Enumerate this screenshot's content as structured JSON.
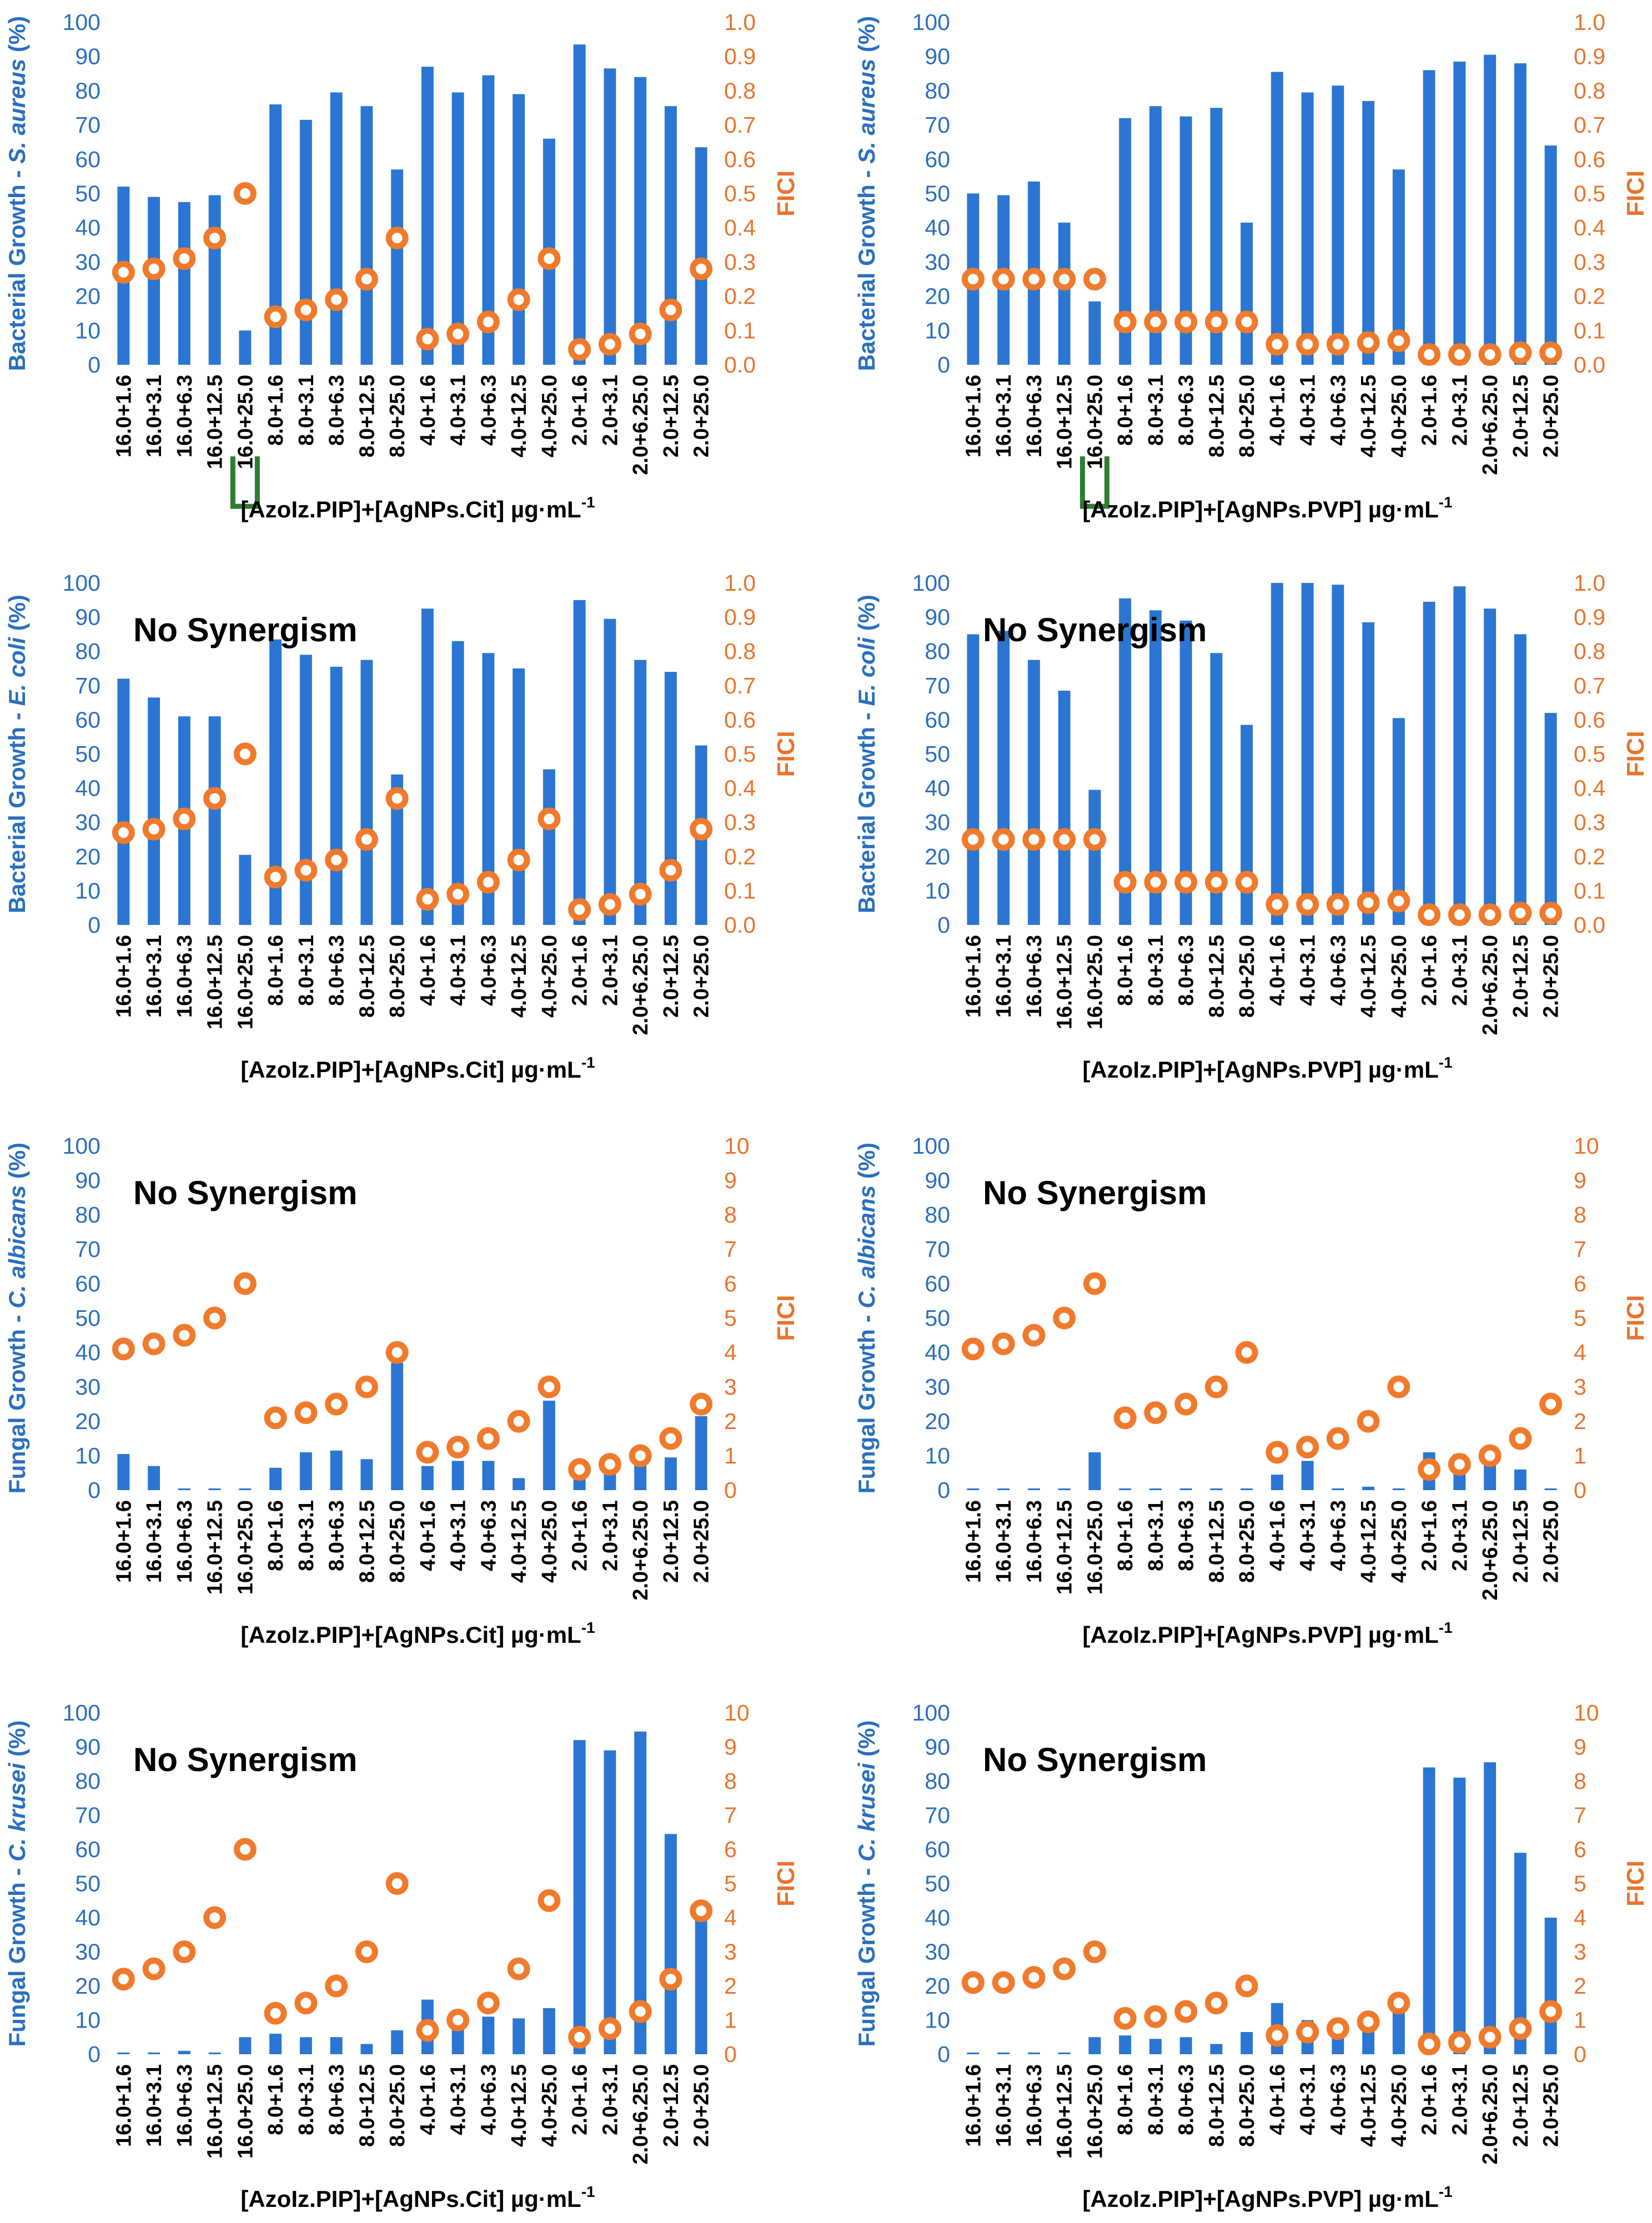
{
  "colors": {
    "bar": "#2a76d2",
    "fici": "#f07a2c",
    "left_axis": "#2a6fbd",
    "right_axis": "#e8742b",
    "marker": "#2e7d2e"
  },
  "chart_data": [
    {
      "id": "sa-cit",
      "type": "bar+scatter",
      "ylabel_prefix": "Bacterial Growth - ",
      "ylabel_species": "S. aureus",
      "ylabel_suffix": " (%)",
      "y2label": "FICI",
      "xlabel_main": "[AzoIz.PIP]+[AgNPs.Cit] µg·mL",
      "xlabel_sup": "-1",
      "ylim": [
        0,
        100
      ],
      "y2lim": [
        0,
        1.0
      ],
      "yticks": [
        "0",
        "10",
        "20",
        "30",
        "40",
        "50",
        "60",
        "70",
        "80",
        "90",
        "100"
      ],
      "y2ticks": [
        "0.0",
        "0.1",
        "0.2",
        "0.3",
        "0.4",
        "0.5",
        "0.6",
        "0.7",
        "0.8",
        "0.9",
        "1.0"
      ],
      "categories": [
        "16.0+1.6",
        "16.0+3.1",
        "16.0+6.3",
        "16.0+12.5",
        "16.0+25.0",
        "8.0+1.6",
        "8.0+3.1",
        "8.0+6.3",
        "8.0+12.5",
        "8.0+25.0",
        "4.0+1.6",
        "4.0+3.1",
        "4.0+6.3",
        "4.0+12.5",
        "4.0+25.0",
        "2.0+1.6",
        "2.0+3.1",
        "2.0+6.25.0",
        "2.0+12.5",
        "2.0+25.0"
      ],
      "growth": [
        52,
        49,
        47.5,
        49.5,
        10,
        76,
        71.5,
        79.5,
        75.5,
        57,
        87,
        79.5,
        84.5,
        79,
        66,
        93.5,
        86.5,
        84,
        75.5,
        63.5
      ],
      "fici": [
        0.27,
        0.28,
        0.31,
        0.37,
        0.5,
        0.14,
        0.16,
        0.19,
        0.25,
        0.37,
        0.075,
        0.09,
        0.125,
        0.19,
        0.31,
        0.045,
        0.06,
        0.09,
        0.16,
        0.28
      ],
      "highlight": {
        "index": 4,
        "label": "16"
      },
      "annotation": ""
    },
    {
      "id": "sa-pvp",
      "type": "bar+scatter",
      "ylabel_prefix": "Bacterial Growth - ",
      "ylabel_species": "S. aureus",
      "ylabel_suffix": " (%)",
      "y2label": "FICI",
      "xlabel_main": "[AzoIz.PIP]+[AgNPs.PVP] µg·mL",
      "xlabel_sup": "-1",
      "ylim": [
        0,
        100
      ],
      "y2lim": [
        0,
        1.0
      ],
      "yticks": [
        "0",
        "10",
        "20",
        "30",
        "40",
        "50",
        "60",
        "70",
        "80",
        "90",
        "100"
      ],
      "y2ticks": [
        "0.0",
        "0.1",
        "0.2",
        "0.3",
        "0.4",
        "0.5",
        "0.6",
        "0.7",
        "0.8",
        "0.9",
        "1.0"
      ],
      "categories": [
        "16.0+1.6",
        "16.0+3.1",
        "16.0+6.3",
        "16.0+12.5",
        "16.0+25.0",
        "8.0+1.6",
        "8.0+3.1",
        "8.0+6.3",
        "8.0+12.5",
        "8.0+25.0",
        "4.0+1.6",
        "4.0+3.1",
        "4.0+6.3",
        "4.0+12.5",
        "4.0+25.0",
        "2.0+1.6",
        "2.0+3.1",
        "2.0+6.25.0",
        "2.0+12.5",
        "2.0+25.0"
      ],
      "growth": [
        50,
        49.5,
        53.5,
        41.5,
        18.5,
        72,
        75.5,
        72.5,
        75,
        41.5,
        85.5,
        79.5,
        81.5,
        77,
        57,
        86,
        88.5,
        90.5,
        88,
        64
      ],
      "fici": [
        0.25,
        0.25,
        0.25,
        0.25,
        0.25,
        0.125,
        0.125,
        0.125,
        0.125,
        0.125,
        0.06,
        0.06,
        0.06,
        0.065,
        0.07,
        0.03,
        0.03,
        0.03,
        0.035,
        0.035
      ],
      "highlight": {
        "index": 4,
        "label": "16"
      },
      "annotation": ""
    },
    {
      "id": "ec-cit",
      "type": "bar+scatter",
      "ylabel_prefix": "Bacterial Growth - ",
      "ylabel_species": "E. coli",
      "ylabel_suffix": " (%)",
      "y2label": "FICI",
      "xlabel_main": "[AzoIz.PIP]+[AgNPs.Cit] µg·mL",
      "xlabel_sup": "-1",
      "ylim": [
        0,
        100
      ],
      "y2lim": [
        0,
        1.0
      ],
      "yticks": [
        "0",
        "10",
        "20",
        "30",
        "40",
        "50",
        "60",
        "70",
        "80",
        "90",
        "100"
      ],
      "y2ticks": [
        "0.0",
        "0.1",
        "0.2",
        "0.3",
        "0.4",
        "0.5",
        "0.6",
        "0.7",
        "0.8",
        "0.9",
        "1.0"
      ],
      "categories": [
        "16.0+1.6",
        "16.0+3.1",
        "16.0+6.3",
        "16.0+12.5",
        "16.0+25.0",
        "8.0+1.6",
        "8.0+3.1",
        "8.0+6.3",
        "8.0+12.5",
        "8.0+25.0",
        "4.0+1.6",
        "4.0+3.1",
        "4.0+6.3",
        "4.0+12.5",
        "4.0+25.0",
        "2.0+1.6",
        "2.0+3.1",
        "2.0+6.25.0",
        "2.0+12.5",
        "2.0+25.0"
      ],
      "growth": [
        72,
        66.5,
        61,
        61,
        20.5,
        83.5,
        79,
        75.5,
        77.5,
        44,
        92.5,
        83,
        79.5,
        75,
        45.5,
        95,
        89.5,
        77.5,
        74,
        52.5
      ],
      "fici": [
        0.27,
        0.28,
        0.31,
        0.37,
        0.5,
        0.14,
        0.16,
        0.19,
        0.25,
        0.37,
        0.075,
        0.09,
        0.125,
        0.19,
        0.31,
        0.045,
        0.06,
        0.09,
        0.16,
        0.28
      ],
      "highlight": null,
      "annotation": "No Synergism"
    },
    {
      "id": "ec-pvp",
      "type": "bar+scatter",
      "ylabel_prefix": "Bacterial Growth - ",
      "ylabel_species": "E. coli",
      "ylabel_suffix": " (%)",
      "y2label": "FICI",
      "xlabel_main": "[AzoIz.PIP]+[AgNPs.PVP] µg·mL",
      "xlabel_sup": "-1",
      "ylim": [
        0,
        100
      ],
      "y2lim": [
        0,
        1.0
      ],
      "yticks": [
        "0",
        "10",
        "20",
        "30",
        "40",
        "50",
        "60",
        "70",
        "80",
        "90",
        "100"
      ],
      "y2ticks": [
        "0.0",
        "0.1",
        "0.2",
        "0.3",
        "0.4",
        "0.5",
        "0.6",
        "0.7",
        "0.8",
        "0.9",
        "1.0"
      ],
      "categories": [
        "16.0+1.6",
        "16.0+3.1",
        "16.0+6.3",
        "16.0+12.5",
        "16.0+25.0",
        "8.0+1.6",
        "8.0+3.1",
        "8.0+6.3",
        "8.0+12.5",
        "8.0+25.0",
        "4.0+1.6",
        "4.0+3.1",
        "4.0+6.3",
        "4.0+12.5",
        "4.0+25.0",
        "2.0+1.6",
        "2.0+3.1",
        "2.0+6.25.0",
        "2.0+12.5",
        "2.0+25.0"
      ],
      "growth": [
        85,
        86,
        77.5,
        68.5,
        39.5,
        95.5,
        92,
        89,
        79.5,
        58.5,
        100,
        100,
        99.5,
        88.5,
        60.5,
        94.5,
        99,
        92.5,
        85,
        62
      ],
      "fici": [
        0.25,
        0.25,
        0.25,
        0.25,
        0.25,
        0.125,
        0.125,
        0.125,
        0.125,
        0.125,
        0.06,
        0.06,
        0.06,
        0.065,
        0.07,
        0.03,
        0.03,
        0.03,
        0.035,
        0.035
      ],
      "highlight": null,
      "annotation": "No Synergism"
    },
    {
      "id": "ca-cit",
      "type": "bar+scatter",
      "ylabel_prefix": "Fungal Growth - ",
      "ylabel_species": "C. albicans",
      "ylabel_suffix": " (%)",
      "y2label": "FICI",
      "xlabel_main": "[AzoIz.PIP]+[AgNPs.Cit] µg·mL",
      "xlabel_sup": "-1",
      "ylim": [
        0,
        100
      ],
      "y2lim": [
        0,
        10
      ],
      "yticks": [
        "0",
        "10",
        "20",
        "30",
        "40",
        "50",
        "60",
        "70",
        "80",
        "90",
        "100"
      ],
      "y2ticks": [
        "0",
        "1",
        "2",
        "3",
        "4",
        "5",
        "6",
        "7",
        "8",
        "9",
        "10"
      ],
      "categories": [
        "16.0+1.6",
        "16.0+3.1",
        "16.0+6.3",
        "16.0+12.5",
        "16.0+25.0",
        "8.0+1.6",
        "8.0+3.1",
        "8.0+6.3",
        "8.0+12.5",
        "8.0+25.0",
        "4.0+1.6",
        "4.0+3.1",
        "4.0+6.3",
        "4.0+12.5",
        "4.0+25.0",
        "2.0+1.6",
        "2.0+3.1",
        "2.0+6.25.0",
        "2.0+12.5",
        "2.0+25.0"
      ],
      "growth": [
        10.5,
        7,
        0.5,
        0.5,
        0.5,
        6.5,
        11,
        11.5,
        9,
        37,
        7,
        8.5,
        8.5,
        3.5,
        26,
        6,
        6.5,
        9.5,
        9.5,
        21.5
      ],
      "fici": [
        4.1,
        4.25,
        4.5,
        5.0,
        6.0,
        2.1,
        2.25,
        2.5,
        3.0,
        4.0,
        1.1,
        1.25,
        1.5,
        2.0,
        3.0,
        0.6,
        0.75,
        1.0,
        1.5,
        2.5
      ],
      "highlight": null,
      "annotation": "No Synergism"
    },
    {
      "id": "ca-pvp",
      "type": "bar+scatter",
      "ylabel_prefix": "Fungal Growth - ",
      "ylabel_species": "C. albicans",
      "ylabel_suffix": " (%)",
      "y2label": "FICI",
      "xlabel_main": "[AzoIz.PIP]+[AgNPs.PVP] µg·mL",
      "xlabel_sup": "-1",
      "ylim": [
        0,
        100
      ],
      "y2lim": [
        0,
        10
      ],
      "yticks": [
        "0",
        "10",
        "20",
        "30",
        "40",
        "50",
        "60",
        "70",
        "80",
        "90",
        "100"
      ],
      "y2ticks": [
        "0",
        "1",
        "2",
        "3",
        "4",
        "5",
        "6",
        "7",
        "8",
        "9",
        "10"
      ],
      "categories": [
        "16.0+1.6",
        "16.0+3.1",
        "16.0+6.3",
        "16.0+12.5",
        "16.0+25.0",
        "8.0+1.6",
        "8.0+3.1",
        "8.0+6.3",
        "8.0+12.5",
        "8.0+25.0",
        "4.0+1.6",
        "4.0+3.1",
        "4.0+6.3",
        "4.0+12.5",
        "4.0+25.0",
        "2.0+1.6",
        "2.0+3.1",
        "2.0+6.25.0",
        "2.0+12.5",
        "2.0+25.0"
      ],
      "growth": [
        0.5,
        0.5,
        0.5,
        0.5,
        11,
        0.5,
        0.5,
        0.5,
        0.5,
        0.5,
        4.5,
        8.5,
        0.5,
        1,
        0.5,
        11,
        10.5,
        10.5,
        6,
        0.5
      ],
      "fici": [
        4.1,
        4.25,
        4.5,
        5.0,
        6.0,
        2.1,
        2.25,
        2.5,
        3.0,
        4.0,
        1.1,
        1.25,
        1.5,
        2.0,
        3.0,
        0.6,
        0.75,
        1.0,
        1.5,
        2.5
      ],
      "highlight": null,
      "annotation": "No Synergism"
    },
    {
      "id": "ck-cit",
      "type": "bar+scatter",
      "ylabel_prefix": "Fungal Growth - ",
      "ylabel_species": "C. krusei",
      "ylabel_suffix": " (%)",
      "y2label": "FICI",
      "xlabel_main": "[AzoIz.PIP]+[AgNPs.Cit] µg·mL",
      "xlabel_sup": "-1",
      "ylim": [
        0,
        100
      ],
      "y2lim": [
        0,
        10
      ],
      "yticks": [
        "0",
        "10",
        "20",
        "30",
        "40",
        "50",
        "60",
        "70",
        "80",
        "90",
        "100"
      ],
      "y2ticks": [
        "0",
        "1",
        "2",
        "3",
        "4",
        "5",
        "6",
        "7",
        "8",
        "9",
        "10"
      ],
      "categories": [
        "16.0+1.6",
        "16.0+3.1",
        "16.0+6.3",
        "16.0+12.5",
        "16.0+25.0",
        "8.0+1.6",
        "8.0+3.1",
        "8.0+6.3",
        "8.0+12.5",
        "8.0+25.0",
        "4.0+1.6",
        "4.0+3.1",
        "4.0+6.3",
        "4.0+12.5",
        "4.0+25.0",
        "2.0+1.6",
        "2.0+3.1",
        "2.0+6.25.0",
        "2.0+12.5",
        "2.0+25.0"
      ],
      "growth": [
        0.5,
        0.5,
        1,
        0.5,
        5,
        6,
        5,
        5,
        3,
        7,
        16,
        11,
        11,
        10.5,
        13.5,
        92,
        89,
        94.5,
        64.5,
        44
      ],
      "fici": [
        2.2,
        2.5,
        3.0,
        4.0,
        6.0,
        1.2,
        1.5,
        2.0,
        3.0,
        5.0,
        0.7,
        1.0,
        1.5,
        2.5,
        4.5,
        0.5,
        0.75,
        1.25,
        2.2,
        4.2
      ],
      "highlight": null,
      "annotation": "No Synergism"
    },
    {
      "id": "ck-pvp",
      "type": "bar+scatter",
      "ylabel_prefix": "Fungal Growth - ",
      "ylabel_species": "C. krusei",
      "ylabel_suffix": " (%)",
      "y2label": "FICI",
      "xlabel_main": "[AzoIz.PIP]+[AgNPs.PVP] µg·mL",
      "xlabel_sup": "-1",
      "ylim": [
        0,
        100
      ],
      "y2lim": [
        0,
        10
      ],
      "yticks": [
        "0",
        "10",
        "20",
        "30",
        "40",
        "50",
        "60",
        "70",
        "80",
        "90",
        "100"
      ],
      "y2ticks": [
        "0",
        "1",
        "2",
        "3",
        "4",
        "5",
        "6",
        "7",
        "8",
        "9",
        "10"
      ],
      "categories": [
        "16.0+1.6",
        "16.0+3.1",
        "16.0+6.3",
        "16.0+12.5",
        "16.0+25.0",
        "8.0+1.6",
        "8.0+3.1",
        "8.0+6.3",
        "8.0+12.5",
        "8.0+25.0",
        "4.0+1.6",
        "4.0+3.1",
        "4.0+6.3",
        "4.0+12.5",
        "4.0+25.0",
        "2.0+1.6",
        "2.0+3.1",
        "2.0+6.25.0",
        "2.0+12.5",
        "2.0+25.0"
      ],
      "growth": [
        0.5,
        0.5,
        0.5,
        0.5,
        5,
        5.5,
        4.5,
        5,
        3,
        6.5,
        15,
        10,
        10,
        10,
        13,
        84,
        81,
        85.5,
        59,
        40
      ],
      "fici": [
        2.1,
        2.1,
        2.25,
        2.5,
        3.0,
        1.05,
        1.1,
        1.25,
        1.5,
        2.0,
        0.55,
        0.65,
        0.75,
        0.95,
        1.5,
        0.3,
        0.35,
        0.5,
        0.75,
        1.25
      ],
      "highlight": null,
      "annotation": "No Synergism"
    }
  ]
}
